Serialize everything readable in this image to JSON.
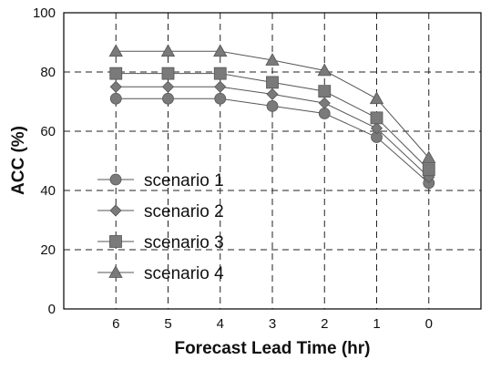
{
  "chart_data": {
    "type": "line",
    "xlabel": "Forecast Lead Time (hr)",
    "ylabel": "ACC (%)",
    "categories": [
      "6",
      "5",
      "4",
      "3",
      "2",
      "1",
      "0"
    ],
    "ylim": [
      0,
      100
    ],
    "yticks": [
      "0",
      "20",
      "40",
      "60",
      "80",
      "100"
    ],
    "grid": true,
    "legend_position": "left-middle",
    "series": [
      {
        "name": "scenario 1",
        "marker": "circle",
        "values": [
          71,
          71,
          71,
          68.5,
          66,
          58,
          42.5
        ]
      },
      {
        "name": "scenario 2",
        "marker": "diamond",
        "values": [
          75,
          75,
          75,
          72.5,
          69.5,
          61,
          44.5
        ]
      },
      {
        "name": "scenario 3",
        "marker": "square",
        "values": [
          79.5,
          79.5,
          79.5,
          76.5,
          73.5,
          64.5,
          47
        ]
      },
      {
        "name": "scenario 4",
        "marker": "triangle",
        "values": [
          87,
          87,
          87,
          84,
          80.5,
          71,
          51
        ]
      }
    ],
    "colors": {
      "line": "#555555",
      "marker": "#7a7a7a"
    }
  }
}
